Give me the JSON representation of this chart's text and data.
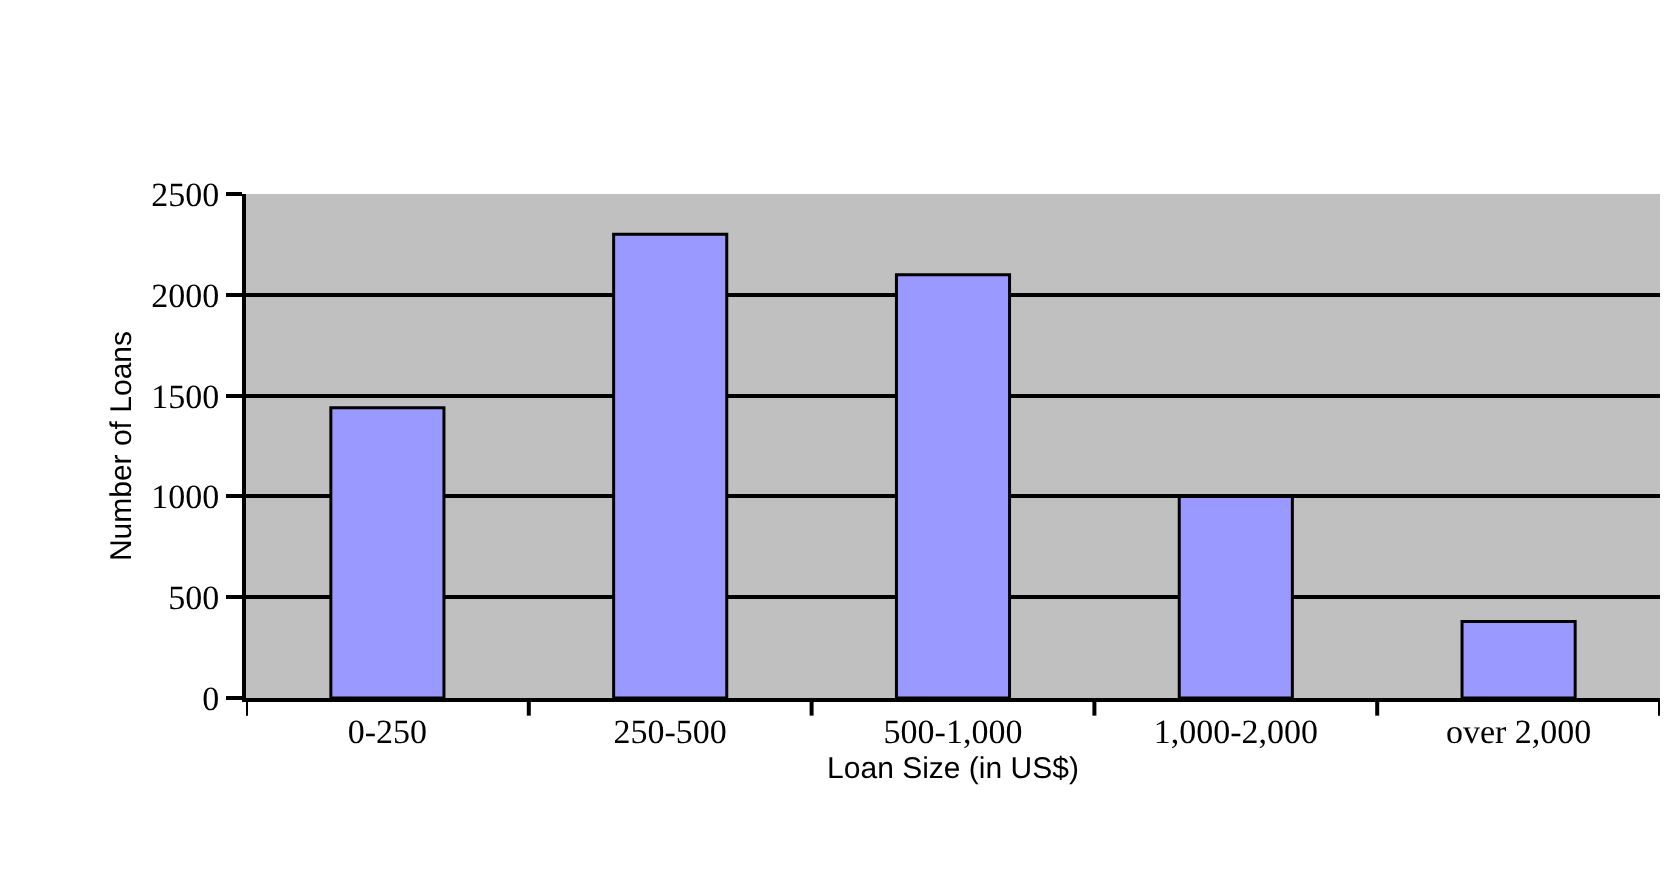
{
  "chart_data": {
    "type": "bar",
    "xlabel": "Loan Size (in US$)",
    "ylabel": "Number of Loans",
    "categories": [
      "0-250",
      "250-500",
      "500-1,000",
      "1,000-2,000",
      "over 2,000"
    ],
    "values": [
      1440,
      2300,
      2100,
      1000,
      380
    ],
    "color": "#9999ff",
    "ylim": [
      0,
      2500
    ],
    "yticks": [
      0,
      500,
      1000,
      1500,
      2000,
      2500
    ],
    "grid": "y",
    "legend": false
  }
}
